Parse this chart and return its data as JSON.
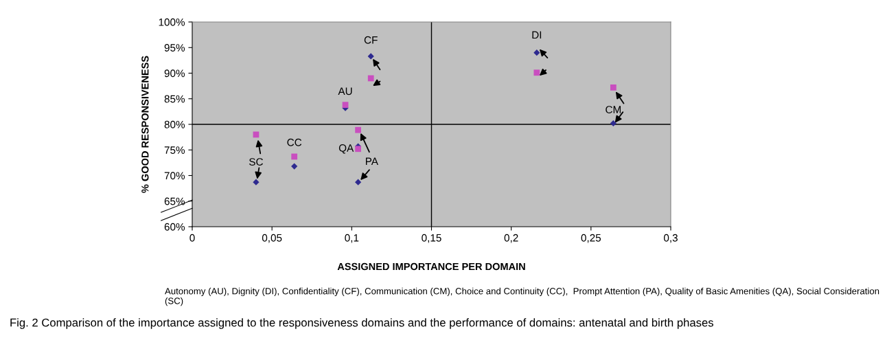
{
  "chart_data": {
    "type": "scatter",
    "xlabel": "ASSIGNED IMPORTANCE PER DOMAIN",
    "ylabel": "% GOOD RESPONSIVENESS",
    "x": [
      0.04,
      0.064,
      0.096,
      0.104,
      0.104,
      0.112,
      0.216,
      0.264
    ],
    "series": [
      {
        "color": "#2e2a8f",
        "marker": "diamond",
        "values": [
          68.7,
          71.8,
          83.2,
          75.7,
          68.7,
          93.3,
          94.0,
          80.2
        ]
      },
      {
        "color": "#c94fbf",
        "marker": "square",
        "values": [
          78.0,
          73.7,
          83.8,
          75.2,
          78.9,
          89.0,
          90.1,
          87.2
        ]
      }
    ],
    "xlim": [
      0,
      0.3
    ],
    "xticks": [
      0,
      {
        "value": 0.05,
        "label": "0,05"
      },
      {
        "value": 0.1,
        "label": "0,1"
      },
      {
        "value": 0.15,
        "label": "0,15"
      },
      {
        "value": 0.2,
        "label": "0,2"
      },
      {
        "value": 0.25,
        "label": "0,25"
      },
      {
        "value": 0.3,
        "label": "0,3"
      }
    ],
    "ylim": [
      60,
      100
    ],
    "yticks": [
      {
        "value": 60,
        "label": "60%"
      },
      {
        "value": 65,
        "label": "65%"
      },
      {
        "value": 70,
        "label": "70%"
      },
      {
        "value": 75,
        "label": "75%"
      },
      {
        "value": 80,
        "label": "80%"
      },
      {
        "value": 85,
        "label": "85%"
      },
      {
        "value": 90,
        "label": "90%"
      },
      {
        "value": 95,
        "label": "95%"
      },
      {
        "value": 100,
        "label": "100%"
      }
    ],
    "ref_lines": [
      {
        "axis": "x",
        "value": 0.15,
        "color": "#000000"
      },
      {
        "axis": "y",
        "value": 80,
        "color": "#000000"
      }
    ],
    "grid": false,
    "legend": false,
    "annotations": [
      {
        "text": "SC",
        "x": 0.04,
        "y": 68.7
      },
      {
        "text": "CC",
        "x": 0.064,
        "y": 71.8
      },
      {
        "text": "AU",
        "x": 0.096,
        "y": 83.2
      },
      {
        "text": "QA",
        "x": 0.104,
        "y": 75.7
      },
      {
        "text": "PA",
        "x": 0.104,
        "y": 68.7
      },
      {
        "text": "CF",
        "x": 0.112,
        "y": 93.3
      },
      {
        "text": "DI",
        "x": 0.216,
        "y": 94.0
      },
      {
        "text": "CM",
        "x": 0.264,
        "y": 80.2
      },
      "Autonomy (AU), Dignity (DI), Confidentiality (CF), Communication (CM), Choice and Continuity (CC),  Prompt Attention (PA), Quality of Basic Amenities (QA), Social Consideration (SC)",
      "Fig. 2 Comparison of the importance assigned to the responsiveness domains and the performance of domains: antenatal and birth phases"
    ]
  }
}
